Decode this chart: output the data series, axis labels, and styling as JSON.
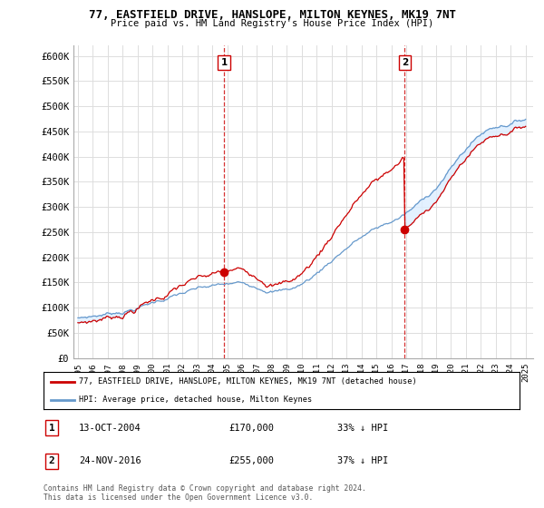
{
  "title": "77, EASTFIELD DRIVE, HANSLOPE, MILTON KEYNES, MK19 7NT",
  "subtitle": "Price paid vs. HM Land Registry's House Price Index (HPI)",
  "ylim": [
    0,
    620000
  ],
  "yticks": [
    0,
    50000,
    100000,
    150000,
    200000,
    250000,
    300000,
    350000,
    400000,
    450000,
    500000,
    550000,
    600000
  ],
  "hpi_color": "#6699cc",
  "price_color": "#cc0000",
  "fill_color": "#ddeeff",
  "marker1_year": 2004.79,
  "marker1_price": 170000,
  "marker1_label": "1",
  "marker1_date": "13-OCT-2004",
  "marker1_pct": "33% ↓ HPI",
  "marker2_year": 2016.9,
  "marker2_price": 255000,
  "marker2_label": "2",
  "marker2_date": "24-NOV-2016",
  "marker2_pct": "37% ↓ HPI",
  "legend_line1": "77, EASTFIELD DRIVE, HANSLOPE, MILTON KEYNES, MK19 7NT (detached house)",
  "legend_line2": "HPI: Average price, detached house, Milton Keynes",
  "footer": "Contains HM Land Registry data © Crown copyright and database right 2024.\nThis data is licensed under the Open Government Licence v3.0.",
  "background_color": "#ffffff",
  "grid_color": "#dddddd"
}
